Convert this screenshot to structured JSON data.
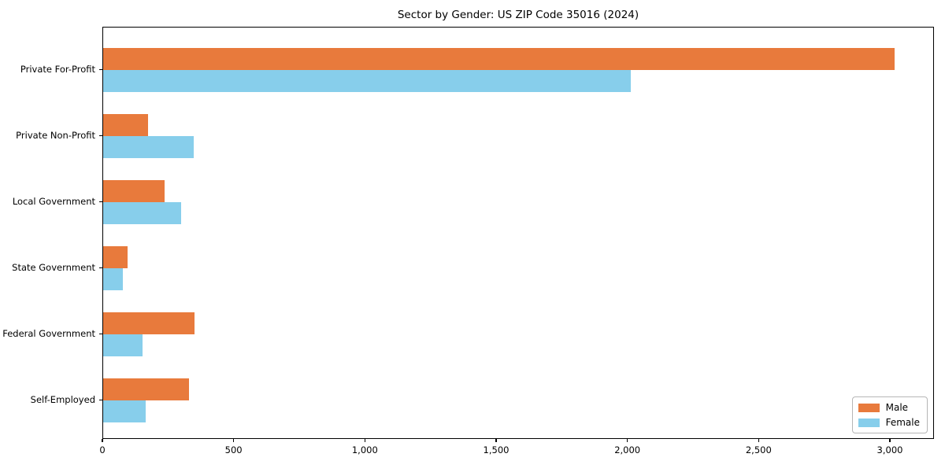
{
  "chart_data": {
    "type": "bar",
    "orientation": "horizontal",
    "title": "Sector by Gender: US ZIP Code 35016 (2024)",
    "categories": [
      "Private For-Profit",
      "Private Non-Profit",
      "Local Government",
      "State Government",
      "Federal Government",
      "Self-Employed"
    ],
    "series": [
      {
        "name": "Male",
        "color": "#E87A3C",
        "values": [
          3015,
          170,
          235,
          92,
          348,
          328
        ]
      },
      {
        "name": "Female",
        "color": "#87CEEB",
        "values": [
          2010,
          345,
          298,
          74,
          150,
          162
        ]
      }
    ],
    "xlabel": "",
    "ylabel": "",
    "xlim": [
      0,
      3168
    ],
    "xticks": [
      0,
      500,
      1000,
      1500,
      2000,
      2500,
      3000
    ],
    "xtick_labels": [
      "0",
      "500",
      "1,000",
      "1,500",
      "2,000",
      "2,500",
      "3,000"
    ],
    "legend_position": "lower right",
    "legend_entries": [
      "Male",
      "Female"
    ],
    "grid": false,
    "plot_border_color": "#000000",
    "background_color": "#ffffff"
  }
}
